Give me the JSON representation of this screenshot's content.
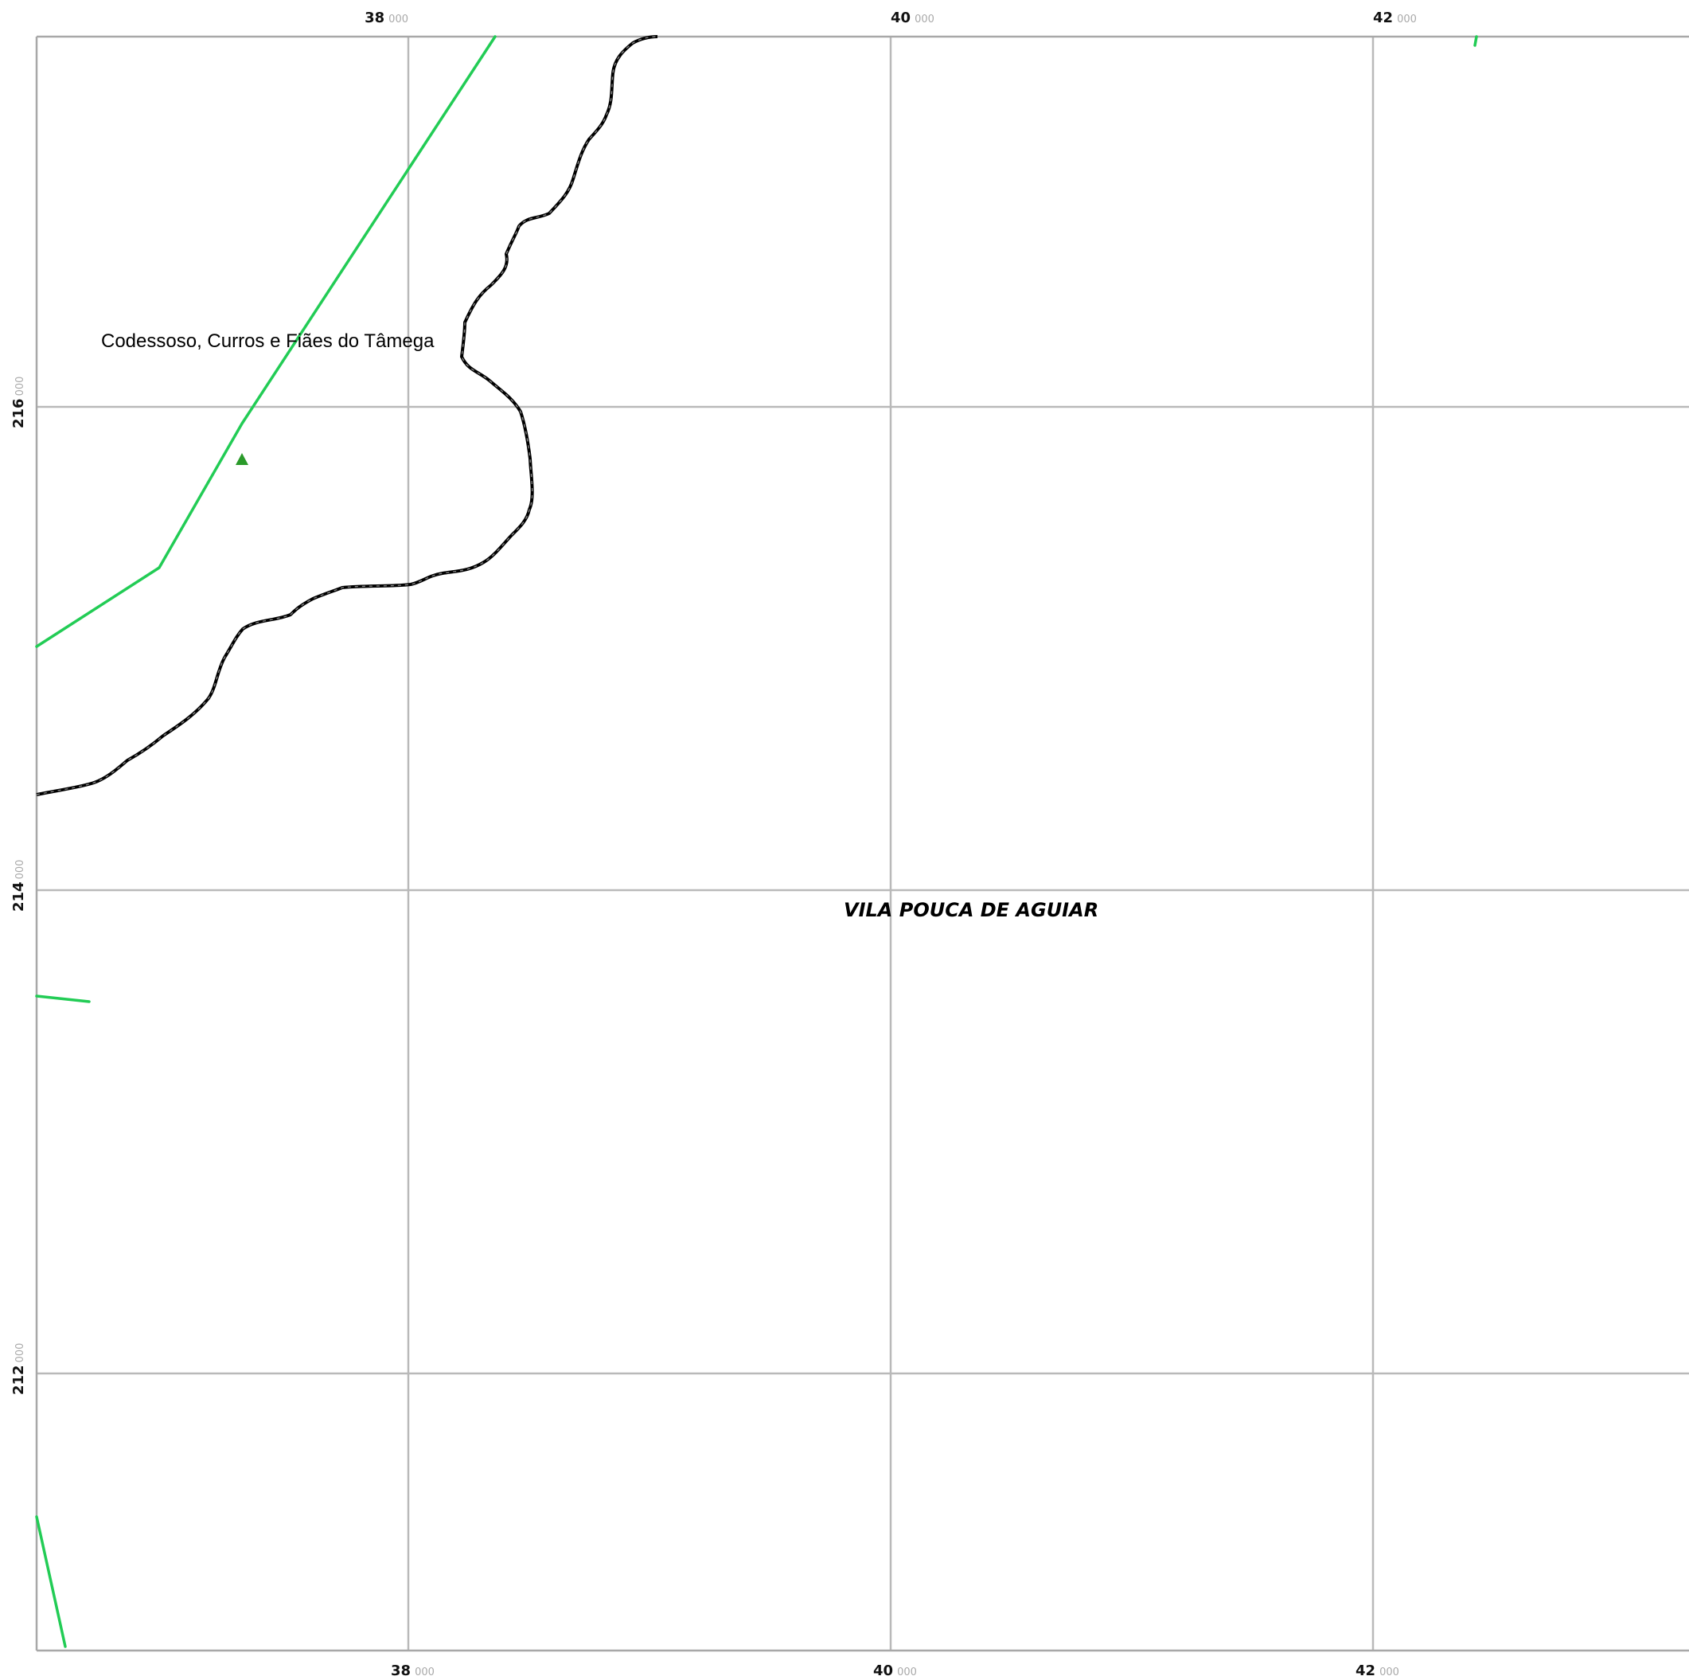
{
  "map": {
    "grid_x_ticks": [
      {
        "major": "38",
        "minor": "000"
      },
      {
        "major": "40",
        "minor": "000"
      },
      {
        "major": "42",
        "minor": "000"
      }
    ],
    "grid_y_ticks": [
      {
        "major": "216",
        "minor": "000"
      },
      {
        "major": "214",
        "minor": "000"
      },
      {
        "major": "212",
        "minor": "000"
      }
    ],
    "labels": {
      "parish": "Codessoso, Curros e Fiães do Tâmega",
      "municipality": "VILA POUCA DE AGUIAR"
    },
    "colors": {
      "grid": "#b9b9b9",
      "road": "#22cc55",
      "boundary": "#000000",
      "marker": "#2a9a2a"
    },
    "icons": {
      "marker": "triangle-marker-icon"
    }
  }
}
